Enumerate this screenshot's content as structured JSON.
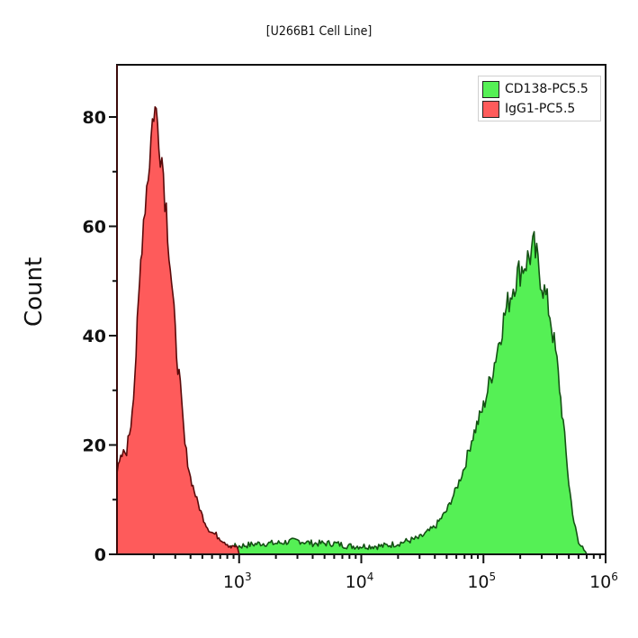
{
  "chart_data": {
    "type": "area",
    "title": "[U266B1 Cell Line]",
    "xlabel": "",
    "ylabel": "Count",
    "xscale": "log",
    "xlim": [
      100,
      1000000
    ],
    "ylim": [
      0,
      88
    ],
    "grid": false,
    "legend_position": "top-right",
    "y_ticks": [
      0,
      20,
      40,
      60,
      80
    ],
    "y_minor_ticks": [
      10,
      30,
      50,
      70
    ],
    "x_ticks": [
      {
        "value": 1000,
        "label_base": "10",
        "label_exp": "3"
      },
      {
        "value": 10000,
        "label_base": "10",
        "label_exp": "4"
      },
      {
        "value": 100000,
        "label_base": "10",
        "label_exp": "5"
      },
      {
        "value": 1000000,
        "label_base": "10",
        "label_exp": "6"
      }
    ],
    "series": [
      {
        "name": "CD138-PC5.5",
        "fill": "#55f055",
        "stroke": "#145214",
        "x": [
          400,
          700,
          1000,
          1500,
          2000,
          3000,
          4000,
          6000,
          8000,
          10000,
          15000,
          20000,
          30000,
          40000,
          50000,
          60000,
          70000,
          80000,
          100000,
          120000,
          150000,
          180000,
          200000,
          230000,
          260000,
          300000,
          350000,
          400000,
          450000,
          500000,
          550000,
          600000,
          700000
        ],
        "values": [
          0,
          1,
          1.5,
          2,
          2,
          2.5,
          2,
          2,
          1.5,
          1.5,
          1.5,
          2,
          3,
          5,
          8,
          12,
          16,
          21,
          27,
          34,
          44,
          50,
          52,
          54,
          56,
          50,
          44,
          35,
          24,
          13,
          6,
          2,
          0
        ]
      },
      {
        "name": "IgG1-PC5.5",
        "fill": "#fe5b5b",
        "stroke": "#5a0a0a",
        "x": [
          100,
          110,
          120,
          130,
          140,
          150,
          160,
          170,
          180,
          190,
          200,
          220,
          240,
          260,
          280,
          300,
          330,
          360,
          400,
          450,
          500,
          550,
          600,
          700,
          800,
          900,
          1000
        ],
        "values": [
          15,
          18,
          19,
          24,
          33,
          45,
          58,
          65,
          70,
          76,
          82,
          78,
          70,
          60,
          50,
          40,
          30,
          20,
          14,
          10,
          7,
          5,
          4,
          3,
          2,
          1,
          0
        ]
      }
    ]
  },
  "legend": {
    "items": [
      {
        "label": "CD138-PC5.5",
        "color": "#55f055"
      },
      {
        "label": "IgG1-PC5.5",
        "color": "#fe5b5b"
      }
    ]
  }
}
